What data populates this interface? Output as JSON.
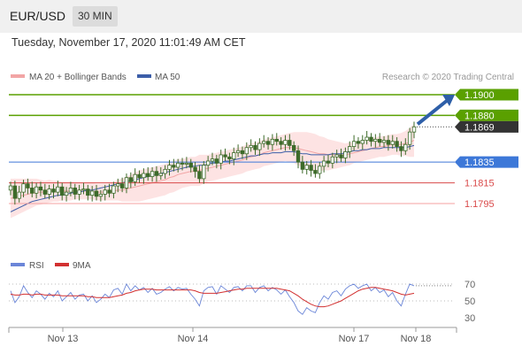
{
  "header": {
    "symbol": "EUR/USD",
    "timeframe": "30 MIN"
  },
  "timestamp": "Tuesday, November 17, 2020 11:01:49 AM CET",
  "legend": {
    "ma20_bb": "MA 20 + Bollinger Bands",
    "ma50": "MA 50",
    "source": "Research © 2020 Trading Central",
    "rsi": "RSI",
    "nine_ma": "9MA"
  },
  "colors": {
    "candle": "#3d6b2a",
    "bollinger_fill": "#fde3e3",
    "ma20": "#f2a5a5",
    "ma50": "#3c5ea8",
    "resistance": "#5aa000",
    "pivot": "#3d78d8",
    "support": "#d94a4a",
    "support_light": "#f4a0a0",
    "current": "#333333",
    "arrow": "#2e5fa8",
    "rsi": "#6b86d8",
    "rsi_ma": "#d23030"
  },
  "chart_data": [
    {
      "type": "candlestick",
      "title": "EUR/USD 30 MIN",
      "x_ticks": [
        "Nov 13",
        "Nov 14",
        "Nov 17",
        "Nov 18"
      ],
      "ylim": [
        1.177,
        1.1905
      ],
      "price_levels": [
        {
          "label": "1.1900",
          "value": 1.19,
          "kind": "resistance"
        },
        {
          "label": "1.1880",
          "value": 1.188,
          "kind": "resistance"
        },
        {
          "label": "1.1869",
          "value": 1.1869,
          "kind": "current"
        },
        {
          "label": "1.1835",
          "value": 1.1835,
          "kind": "pivot"
        },
        {
          "label": "1.1815",
          "value": 1.1815,
          "kind": "support"
        },
        {
          "label": "1.1795",
          "value": 1.1795,
          "kind": "support"
        }
      ],
      "close": [
        1.1812,
        1.18,
        1.1806,
        1.1814,
        1.181,
        1.1805,
        1.1811,
        1.1808,
        1.1804,
        1.1809,
        1.1806,
        1.1811,
        1.1803,
        1.1806,
        1.181,
        1.1804,
        1.1808,
        1.1809,
        1.1803,
        1.1807,
        1.1802,
        1.1804,
        1.1808,
        1.1805,
        1.1812,
        1.1814,
        1.181,
        1.182,
        1.1816,
        1.1823,
        1.182,
        1.1824,
        1.1821,
        1.1826,
        1.1822,
        1.1824,
        1.1828,
        1.1832,
        1.183,
        1.1834,
        1.1833,
        1.1834,
        1.183,
        1.1826,
        1.1819,
        1.1832,
        1.1836,
        1.1838,
        1.1834,
        1.1842,
        1.184,
        1.1838,
        1.1844,
        1.1846,
        1.1843,
        1.1849,
        1.1851,
        1.1847,
        1.1853,
        1.1855,
        1.1852,
        1.1857,
        1.1855,
        1.1852,
        1.1856,
        1.1851,
        1.1846,
        1.1835,
        1.1828,
        1.1832,
        1.1827,
        1.1824,
        1.1831,
        1.1836,
        1.1834,
        1.184,
        1.1842,
        1.1839,
        1.1845,
        1.185,
        1.1855,
        1.1853,
        1.1856,
        1.1859,
        1.1855,
        1.1857,
        1.1854,
        1.1856,
        1.1852,
        1.1855,
        1.185,
        1.1846,
        1.1852,
        1.1864,
        1.1869
      ],
      "ma50": [
        1.1787,
        1.1789,
        1.1791,
        1.1793,
        1.1795,
        1.1797,
        1.1798,
        1.1799,
        1.18,
        1.1801,
        1.1802,
        1.1803,
        1.1803,
        1.1804,
        1.1805,
        1.1806,
        1.1806,
        1.1807,
        1.1808,
        1.1808,
        1.1809,
        1.181,
        1.1811,
        1.1812,
        1.1813,
        1.1814,
        1.1815,
        1.1816,
        1.1817,
        1.1818,
        1.1819,
        1.182,
        1.1821,
        1.1822,
        1.1823,
        1.1824,
        1.1825,
        1.1826,
        1.1827,
        1.1828,
        1.1829,
        1.183,
        1.1831,
        1.1831,
        1.1832,
        1.1832,
        1.1833,
        1.1834,
        1.1834,
        1.1835,
        1.1836,
        1.1836,
        1.1837,
        1.1838,
        1.1839,
        1.184,
        1.1841,
        1.1841,
        1.1842,
        1.1843,
        1.1843,
        1.1844,
        1.1844,
        1.1844,
        1.1845,
        1.1845,
        1.1845,
        1.1844,
        1.1843,
        1.1843,
        1.1842,
        1.1842,
        1.1842,
        1.1842,
        1.1842,
        1.1843,
        1.1843,
        1.1843,
        1.1844,
        1.1845,
        1.1846,
        1.1846,
        1.1847,
        1.1847,
        1.1848,
        1.1848,
        1.1848,
        1.1849,
        1.1849,
        1.1849,
        1.1849,
        1.1849,
        1.1849,
        1.185,
        1.1851
      ],
      "ma20": [
        1.18,
        1.1801,
        1.1802,
        1.1803,
        1.1804,
        1.1805,
        1.1806,
        1.1806,
        1.1806,
        1.1807,
        1.1807,
        1.1807,
        1.1807,
        1.1807,
        1.1807,
        1.1807,
        1.1807,
        1.1807,
        1.1807,
        1.1807,
        1.1806,
        1.1806,
        1.1806,
        1.1806,
        1.1807,
        1.1808,
        1.1808,
        1.1809,
        1.181,
        1.1811,
        1.1812,
        1.1813,
        1.1814,
        1.1815,
        1.1816,
        1.1817,
        1.1818,
        1.182,
        1.1821,
        1.1823,
        1.1824,
        1.1825,
        1.1826,
        1.1826,
        1.1827,
        1.1828,
        1.1829,
        1.183,
        1.1831,
        1.1832,
        1.1833,
        1.1834,
        1.1835,
        1.1836,
        1.1837,
        1.1839,
        1.184,
        1.1841,
        1.1842,
        1.1844,
        1.1845,
        1.1846,
        1.1847,
        1.1848,
        1.1849,
        1.1849,
        1.1849,
        1.1848,
        1.1847,
        1.1846,
        1.1845,
        1.1844,
        1.1843,
        1.1843,
        1.1842,
        1.1842,
        1.1842,
        1.1842,
        1.1842,
        1.1843,
        1.1844,
        1.1845,
        1.1846,
        1.1847,
        1.1848,
        1.1849,
        1.185,
        1.185,
        1.1851,
        1.1852,
        1.1852,
        1.1852,
        1.1853,
        1.1854,
        1.1856
      ],
      "bb_width": [
        0.0019,
        0.0018,
        0.0017,
        0.0016,
        0.0015,
        0.0014,
        0.0013,
        0.0012,
        0.0011,
        0.0011,
        0.001,
        0.001,
        0.0009,
        0.0009,
        0.0009,
        0.0008,
        0.0008,
        0.0008,
        0.0008,
        0.0008,
        0.0008,
        0.0008,
        0.0008,
        0.0008,
        0.0009,
        0.001,
        0.0011,
        0.0012,
        0.0013,
        0.0014,
        0.0015,
        0.0015,
        0.0015,
        0.0015,
        0.0015,
        0.0015,
        0.0015,
        0.0015,
        0.0015,
        0.0015,
        0.0014,
        0.0014,
        0.0014,
        0.0014,
        0.0015,
        0.0014,
        0.0013,
        0.0013,
        0.0013,
        0.0013,
        0.0013,
        0.0013,
        0.0013,
        0.0013,
        0.0013,
        0.0013,
        0.0013,
        0.0013,
        0.0013,
        0.0013,
        0.0013,
        0.0013,
        0.0013,
        0.0013,
        0.0013,
        0.0014,
        0.0015,
        0.0016,
        0.0017,
        0.0018,
        0.0018,
        0.0018,
        0.0017,
        0.0016,
        0.0015,
        0.0014,
        0.0013,
        0.0012,
        0.0011,
        0.0011,
        0.001,
        0.001,
        0.001,
        0.001,
        0.001,
        0.001,
        0.001,
        0.001,
        0.001,
        0.001,
        0.001,
        0.0011,
        0.0012,
        0.0014,
        0.0016
      ],
      "forecast_target": 1.19
    },
    {
      "type": "line",
      "title": "RSI",
      "series": [
        {
          "name": "RSI",
          "values": [
            62,
            48,
            55,
            68,
            60,
            54,
            62,
            58,
            52,
            59,
            55,
            62,
            50,
            55,
            60,
            52,
            57,
            58,
            50,
            56,
            48,
            52,
            58,
            54,
            63,
            65,
            58,
            70,
            62,
            68,
            63,
            66,
            60,
            65,
            58,
            60,
            64,
            67,
            62,
            66,
            64,
            65,
            58,
            52,
            44,
            62,
            66,
            67,
            58,
            68,
            64,
            60,
            66,
            67,
            62,
            68,
            68,
            60,
            66,
            68,
            62,
            66,
            63,
            58,
            63,
            55,
            48,
            38,
            34,
            42,
            38,
            36,
            48,
            56,
            52,
            60,
            62,
            56,
            64,
            68,
            70,
            65,
            68,
            70,
            62,
            66,
            60,
            63,
            55,
            60,
            50,
            44,
            58,
            70,
            68
          ]
        },
        {
          "name": "9MA",
          "values": [
            58,
            57,
            57,
            58,
            58,
            57,
            58,
            58,
            57,
            57,
            57,
            57,
            56,
            56,
            56,
            56,
            56,
            56,
            55,
            55,
            54,
            54,
            54,
            54,
            55,
            56,
            57,
            59,
            60,
            62,
            63,
            64,
            64,
            64,
            63,
            63,
            63,
            63,
            63,
            63,
            63,
            63,
            63,
            62,
            60,
            59,
            59,
            59,
            59,
            60,
            61,
            62,
            63,
            64,
            64,
            65,
            65,
            65,
            65,
            65,
            65,
            65,
            65,
            64,
            63,
            62,
            59,
            56,
            52,
            49,
            46,
            44,
            43,
            43,
            44,
            46,
            48,
            50,
            53,
            56,
            59,
            62,
            64,
            65,
            66,
            66,
            65,
            64,
            63,
            62,
            60,
            58,
            57,
            58,
            59
          ]
        }
      ],
      "y_ticks": [
        "70",
        "50",
        "30"
      ],
      "ylim": [
        25,
        80
      ]
    }
  ]
}
